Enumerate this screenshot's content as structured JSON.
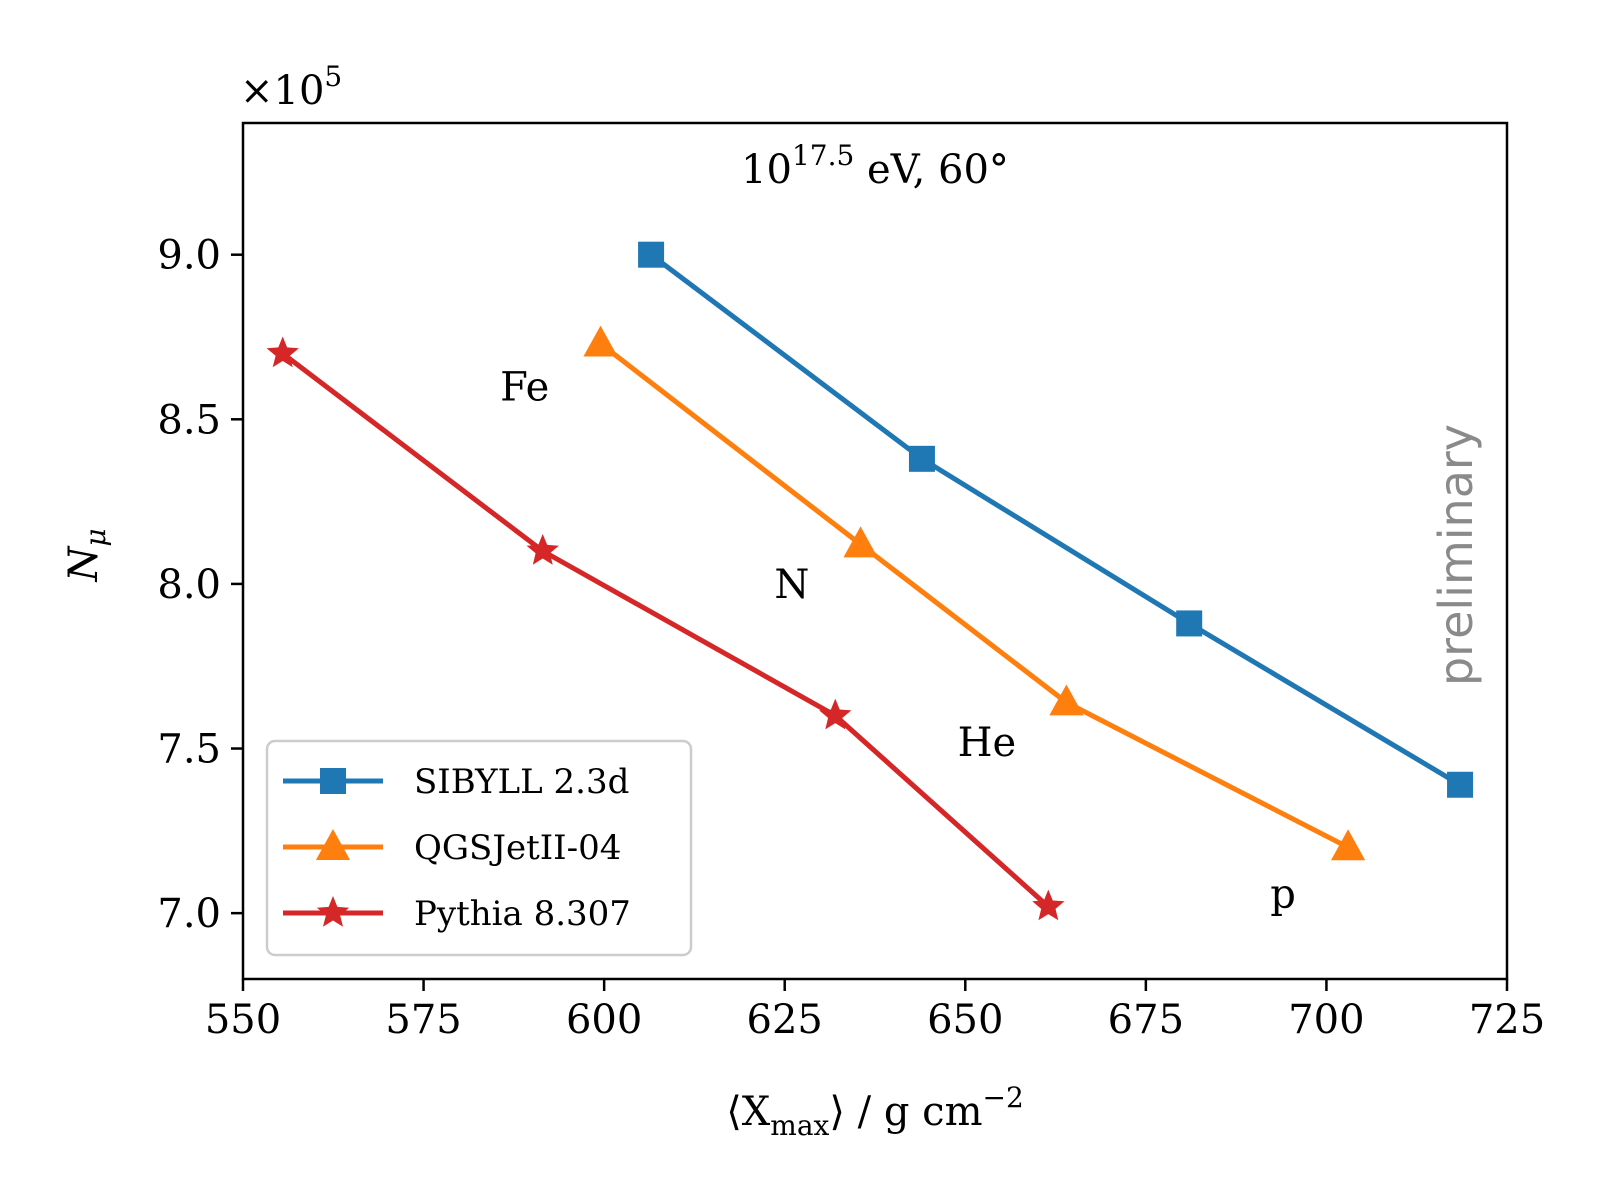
{
  "chart_data": {
    "type": "line",
    "title": "10^17.5 eV, 60°",
    "title_base": "10",
    "title_exp": "17.5",
    "title_rest": " eV, 60°",
    "xlabel": "⟨Xmax⟩ / g cm−2",
    "xlabel_left": "⟨X",
    "xlabel_sub": "max",
    "xlabel_right": "⟩ / g cm",
    "xlabel_sup": "−2",
    "ylabel": "Nμ",
    "ylabel_main": "N",
    "ylabel_sub": "μ",
    "y_multiplier": "×10^5",
    "y_multiplier_text": "×10",
    "y_multiplier_exp": "5",
    "xlim": [
      550,
      725
    ],
    "ylim": [
      6.8,
      9.4
    ],
    "xticks": [
      550,
      575,
      600,
      625,
      650,
      675,
      700,
      725
    ],
    "yticks": [
      7.0,
      7.5,
      8.0,
      8.5,
      9.0
    ],
    "grid": false,
    "legend_position": "bottom-left",
    "series": [
      {
        "name": "SIBYLL 2.3d",
        "color": "#1f77b4",
        "marker": "square",
        "x": [
          606.5,
          644,
          681,
          718.5
        ],
        "y": [
          9.0,
          8.38,
          7.88,
          7.39
        ]
      },
      {
        "name": "QGSJetII-04",
        "color": "#ff7f0e",
        "marker": "triangle",
        "x": [
          599.5,
          635.5,
          664,
          703
        ],
        "y": [
          8.73,
          8.12,
          7.64,
          7.2
        ]
      },
      {
        "name": "Pythia 8.307",
        "color": "#d62728",
        "marker": "star",
        "x": [
          555.5,
          591.5,
          632,
          661.5
        ],
        "y": [
          8.7,
          8.1,
          7.6,
          7.02
        ]
      }
    ],
    "annotations": [
      {
        "text": "Fe",
        "x": 589,
        "y": 8.6
      },
      {
        "text": "N",
        "x": 626,
        "y": 8.0
      },
      {
        "text": "He",
        "x": 653,
        "y": 7.52
      },
      {
        "text": "p",
        "x": 694,
        "y": 7.06
      }
    ],
    "watermark": "preliminary"
  }
}
